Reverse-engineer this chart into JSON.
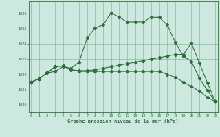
{
  "title": "Graphe pression niveau de la mer (hPa)",
  "xlim": [
    0,
    23
  ],
  "ylim": [
    1019.5,
    1026.5
  ],
  "yticks": [
    1020,
    1021,
    1022,
    1023,
    1024,
    1025,
    1026
  ],
  "xticks": [
    0,
    1,
    2,
    3,
    4,
    5,
    6,
    7,
    8,
    9,
    10,
    11,
    12,
    13,
    14,
    15,
    16,
    17,
    18,
    19,
    20,
    21,
    22,
    23
  ],
  "background_color": "#cce8df",
  "grid_color": "#4a9e6a",
  "line_color": "#2d6e3a",
  "line1": [
    1021.5,
    1021.7,
    1022.1,
    1022.2,
    1022.5,
    1022.4,
    1022.8,
    1024.4,
    1025.05,
    1025.25,
    1026.05,
    1025.75,
    1025.45,
    1025.45,
    1025.45,
    1025.75,
    1025.75,
    1025.25,
    1024.1,
    1023.2,
    1022.85,
    1021.75,
    1020.95,
    1020.2
  ],
  "line2": [
    1021.5,
    1021.7,
    1022.1,
    1022.5,
    1022.55,
    1022.3,
    1022.25,
    1022.25,
    1022.3,
    1022.4,
    1022.5,
    1022.6,
    1022.7,
    1022.8,
    1022.9,
    1023.0,
    1023.1,
    1023.2,
    1023.3,
    1023.3,
    1024.05,
    1022.75,
    1021.45,
    1020.2
  ],
  "line3": [
    1021.5,
    1021.7,
    1022.1,
    1022.5,
    1022.55,
    1022.3,
    1022.2,
    1022.2,
    1022.2,
    1022.2,
    1022.2,
    1022.2,
    1022.2,
    1022.2,
    1022.2,
    1022.2,
    1022.2,
    1022.0,
    1021.8,
    1021.5,
    1021.2,
    1020.9,
    1020.5,
    1020.2
  ]
}
